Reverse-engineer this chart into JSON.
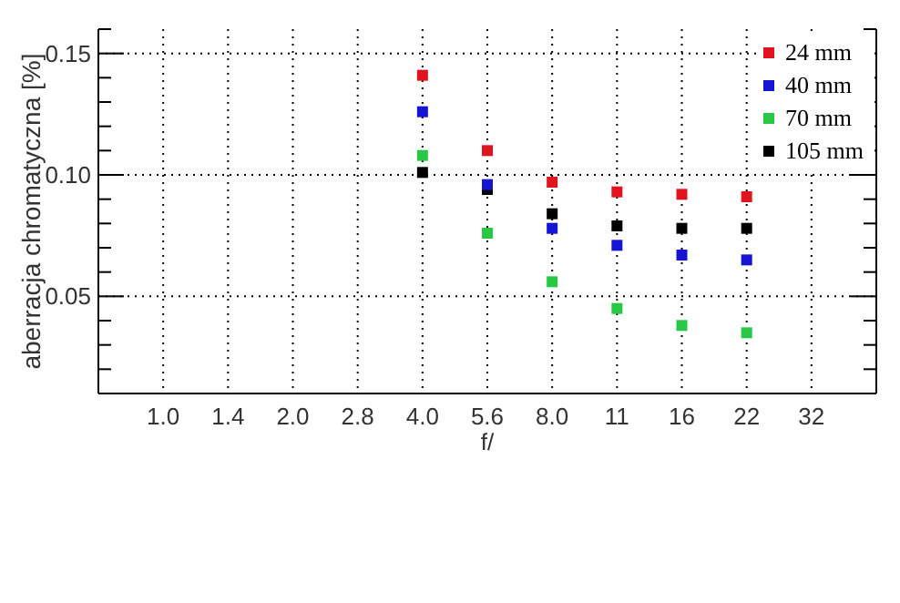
{
  "chart_data": {
    "type": "scatter",
    "xlabel": "f/",
    "ylabel": "aberracja chromatyczna [%]",
    "categories": [
      "1.0",
      "1.4",
      "2.0",
      "2.8",
      "4.0",
      "5.6",
      "8.0",
      "11",
      "16",
      "22",
      "32"
    ],
    "series": [
      {
        "name": "24 mm",
        "color": "#e0141e",
        "values": [
          null,
          null,
          null,
          null,
          0.141,
          0.11,
          0.097,
          0.093,
          0.092,
          0.091,
          null
        ]
      },
      {
        "name": "40 mm",
        "color": "#1414d2",
        "values": [
          null,
          null,
          null,
          null,
          0.126,
          0.096,
          0.078,
          0.071,
          0.067,
          0.065,
          null
        ]
      },
      {
        "name": "70 mm",
        "color": "#28c846",
        "values": [
          null,
          null,
          null,
          null,
          0.108,
          0.076,
          0.056,
          0.045,
          0.038,
          0.035,
          null
        ]
      },
      {
        "name": "105 mm",
        "color": "#000000",
        "values": [
          null,
          null,
          null,
          null,
          0.101,
          0.094,
          0.084,
          0.079,
          0.078,
          0.078,
          null
        ]
      }
    ],
    "ylim": [
      0.01,
      0.16
    ],
    "yticks": [
      {
        "value": 0.01,
        "label": null
      },
      {
        "value": 0.02,
        "label": null
      },
      {
        "value": 0.03,
        "label": null
      },
      {
        "value": 0.04,
        "label": null
      },
      {
        "value": 0.05,
        "label": "0.05"
      },
      {
        "value": 0.06,
        "label": null
      },
      {
        "value": 0.07,
        "label": null
      },
      {
        "value": 0.08,
        "label": null
      },
      {
        "value": 0.09,
        "label": null
      },
      {
        "value": 0.1,
        "label": "0.10"
      },
      {
        "value": 0.11,
        "label": null
      },
      {
        "value": 0.12,
        "label": null
      },
      {
        "value": 0.13,
        "label": null
      },
      {
        "value": 0.14,
        "label": null
      },
      {
        "value": 0.15,
        "label": "0.15"
      },
      {
        "value": 0.16,
        "label": null
      }
    ],
    "grid": true,
    "legend": "top right",
    "marker": "square"
  }
}
